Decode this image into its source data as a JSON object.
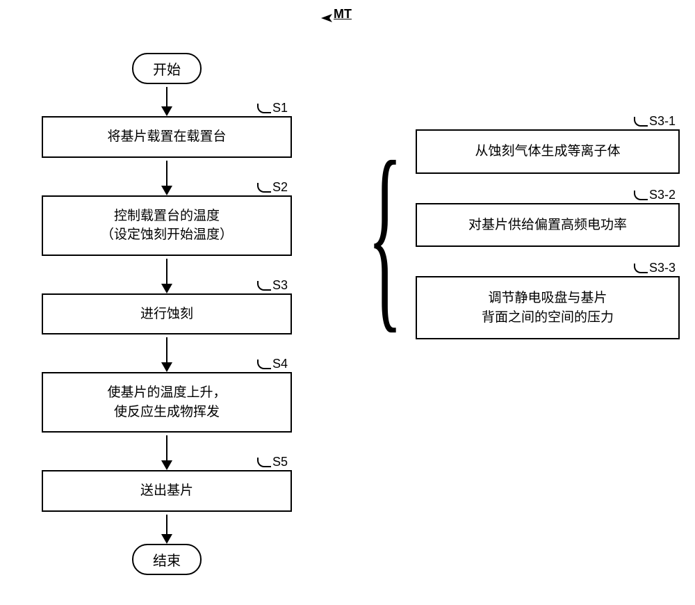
{
  "header": {
    "mt_label": "MT"
  },
  "flow": {
    "start": "开始",
    "end": "结束",
    "steps": [
      {
        "id": "S1",
        "text": "将基片载置在载置台"
      },
      {
        "id": "S2",
        "text": "控制载置台的温度\n（设定蚀刻开始温度）"
      },
      {
        "id": "S3",
        "text": "进行蚀刻"
      },
      {
        "id": "S4",
        "text": "使基片的温度上升，\n使反应生成物挥发"
      },
      {
        "id": "S5",
        "text": "送出基片"
      }
    ]
  },
  "substeps": [
    {
      "id": "S3-1",
      "text": "从蚀刻气体生成等离子体"
    },
    {
      "id": "S3-2",
      "text": "对基片供给偏置高频电功率"
    },
    {
      "id": "S3-3",
      "text": "调节静电吸盘与基片\n背面之间的空间的压力"
    }
  ],
  "style": {
    "border_color": "#000000",
    "background": "#ffffff",
    "font_size_step": 19,
    "font_size_label": 18,
    "arrow_shaft_heights": [
      28,
      36,
      36,
      36,
      36,
      28
    ],
    "left_col_width": 360,
    "right_step_width": 380
  }
}
